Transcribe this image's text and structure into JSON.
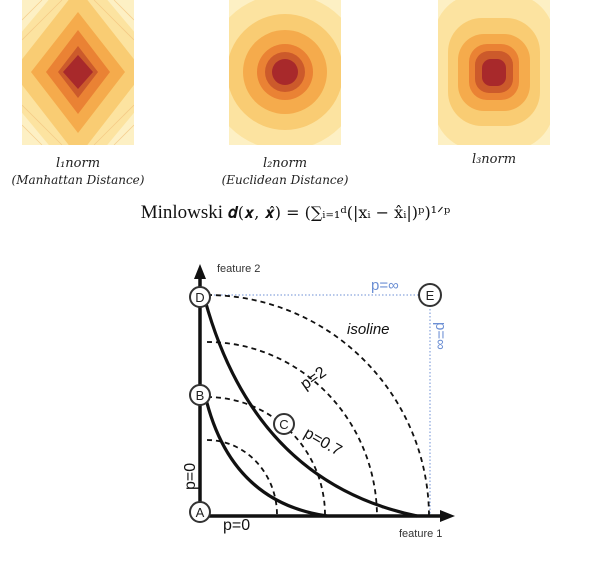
{
  "panels": [
    {
      "norm_label": "l₁norm",
      "subtitle": "(Manhattan Distance)"
    },
    {
      "norm_label": "l₂norm",
      "subtitle": "(Euclidean Distance)"
    },
    {
      "norm_label": "l₃norm",
      "subtitle": ""
    }
  ],
  "formula": {
    "word": "Minlowski",
    "expression": "𝒅(𝒙, 𝒙̂) = (∑ᵢ₌₁ᵈ(|xᵢ − x̂ᵢ|)ᵖ)¹ᐟᵖ"
  },
  "diagram": {
    "axis_y": "feature 2",
    "axis_x": "feature 1",
    "points": {
      "a": "A",
      "b": "B",
      "c": "C",
      "d": "D",
      "e": "E"
    },
    "labels": {
      "isoline": "isoline",
      "p2": "p=2",
      "p07": "p=0.7",
      "p0_vertical": "p=0",
      "p0_horizontal": "p=0",
      "pinf_top": "p=∞",
      "pinf_side": "p=∞"
    },
    "colors": {
      "blue": "#6c8fd4",
      "black": "#111111"
    }
  },
  "heatmap_colors": [
    "#fdf0c4",
    "#fce3a0",
    "#f9cc73",
    "#f5ab4c",
    "#ea8234",
    "#cc5a2b",
    "#a8292b"
  ]
}
